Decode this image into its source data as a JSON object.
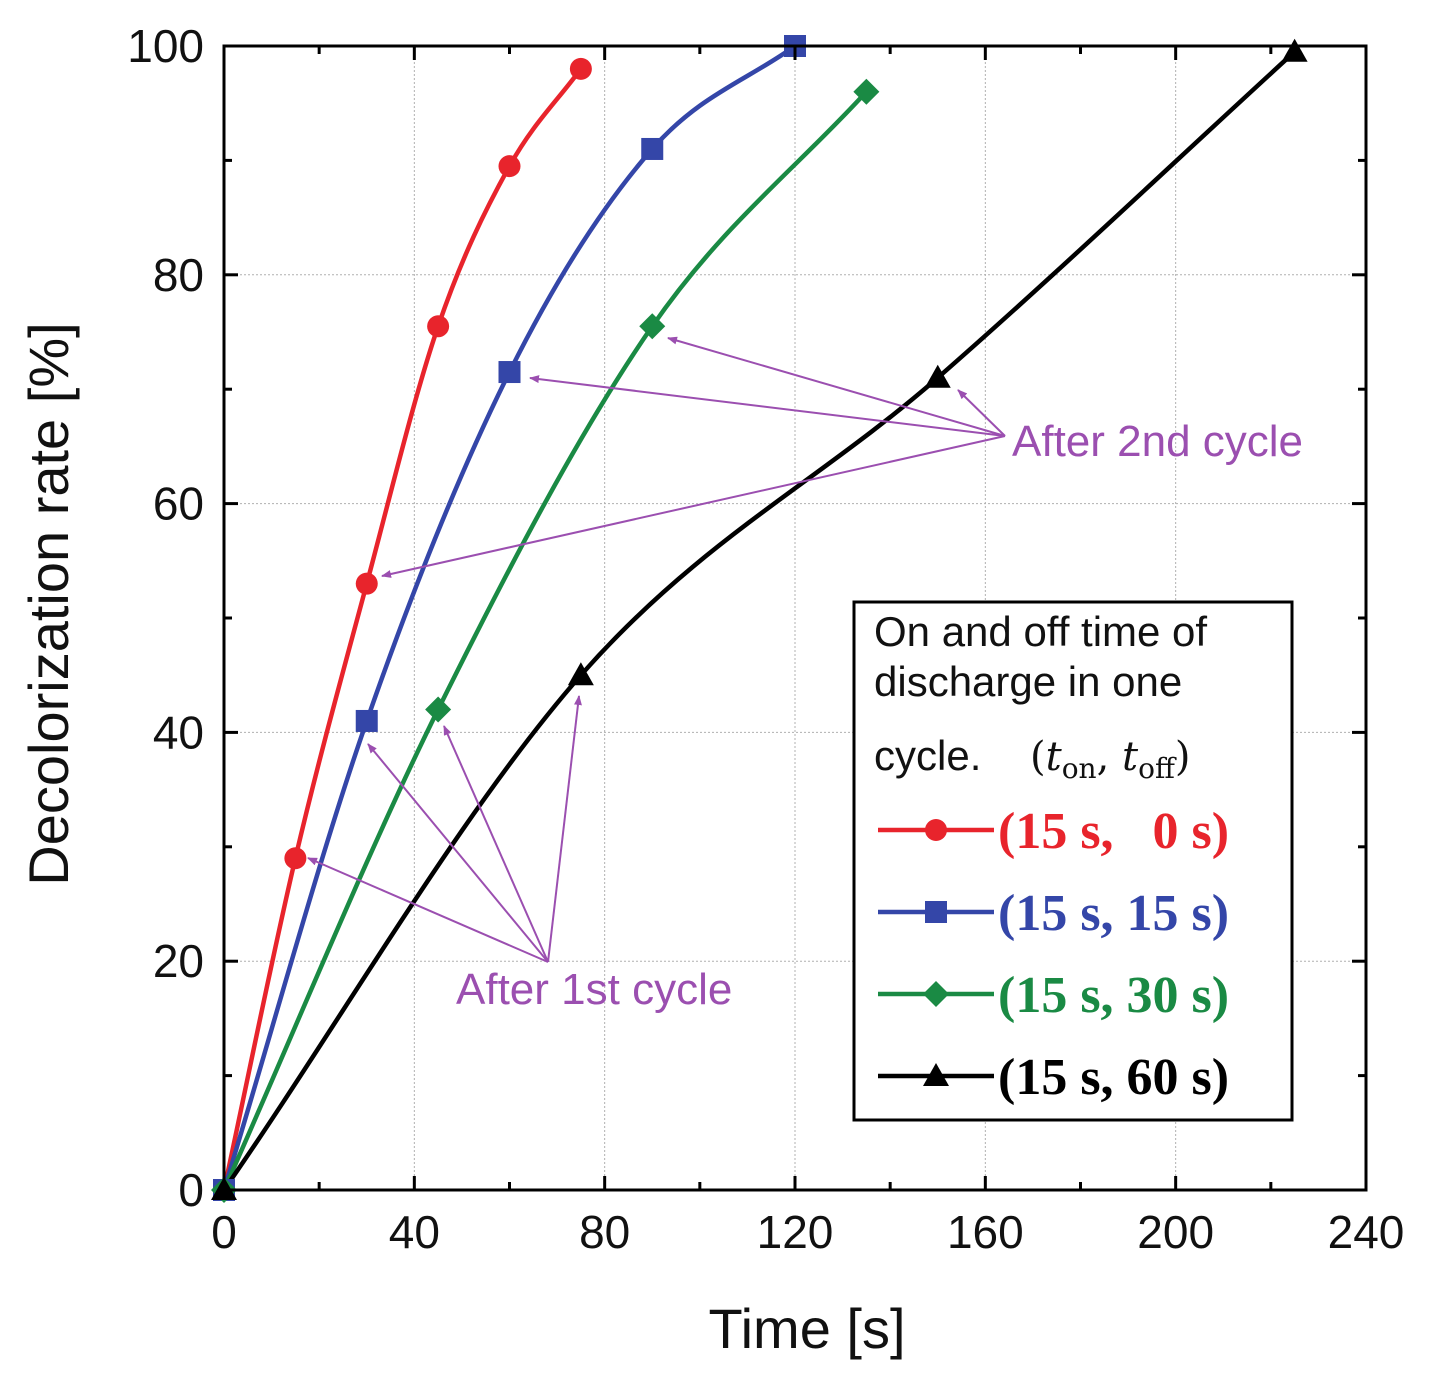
{
  "chart_data": {
    "type": "line",
    "title": "",
    "xlabel": "Time [s]",
    "ylabel": "Decolorization rate [%]",
    "xlim": [
      0,
      240
    ],
    "ylim": [
      0,
      100
    ],
    "xticks": [
      0,
      40,
      80,
      120,
      160,
      200,
      240
    ],
    "yticks": [
      0,
      20,
      40,
      60,
      80,
      100
    ],
    "grid": true,
    "legend_position": "bottom-right",
    "legend_title_lines": [
      "On and off time of",
      "discharge in one"
    ],
    "legend_title_cycle": "cycle.",
    "legend_title_math": "(t_on, t_off)",
    "series": [
      {
        "name": "(15 s,   0 s)",
        "color": "#e8242c",
        "marker": "circle",
        "points": [
          [
            0,
            0
          ],
          [
            15,
            29
          ],
          [
            30,
            53
          ],
          [
            45,
            75.5
          ],
          [
            60,
            89.5
          ],
          [
            75,
            98
          ]
        ]
      },
      {
        "name": "(15 s, 15 s)",
        "color": "#3446a8",
        "marker": "square",
        "points": [
          [
            0,
            0
          ],
          [
            30,
            41
          ],
          [
            60,
            71.5
          ],
          [
            90,
            91
          ],
          [
            120,
            100
          ]
        ]
      },
      {
        "name": "(15 s, 30 s)",
        "color": "#1a8a44",
        "marker": "diamond",
        "points": [
          [
            0,
            0
          ],
          [
            45,
            42
          ],
          [
            90,
            75.5
          ],
          [
            135,
            96
          ]
        ]
      },
      {
        "name": "(15 s, 60 s)",
        "color": "#000000",
        "marker": "triangle",
        "points": [
          [
            0,
            0
          ],
          [
            75,
            45
          ],
          [
            150,
            71
          ],
          [
            225,
            99.5
          ]
        ]
      }
    ],
    "annotations": [
      {
        "text": "After 1st cycle",
        "color": "#9b4fb0",
        "targets": [
          [
            15,
            29
          ],
          [
            30,
            41
          ],
          [
            45,
            42
          ],
          [
            75,
            45
          ]
        ]
      },
      {
        "text": "After 2nd cycle",
        "color": "#9b4fb0",
        "targets": [
          [
            30,
            53
          ],
          [
            60,
            71.5
          ],
          [
            90,
            75.5
          ],
          [
            150,
            71
          ]
        ]
      }
    ]
  }
}
